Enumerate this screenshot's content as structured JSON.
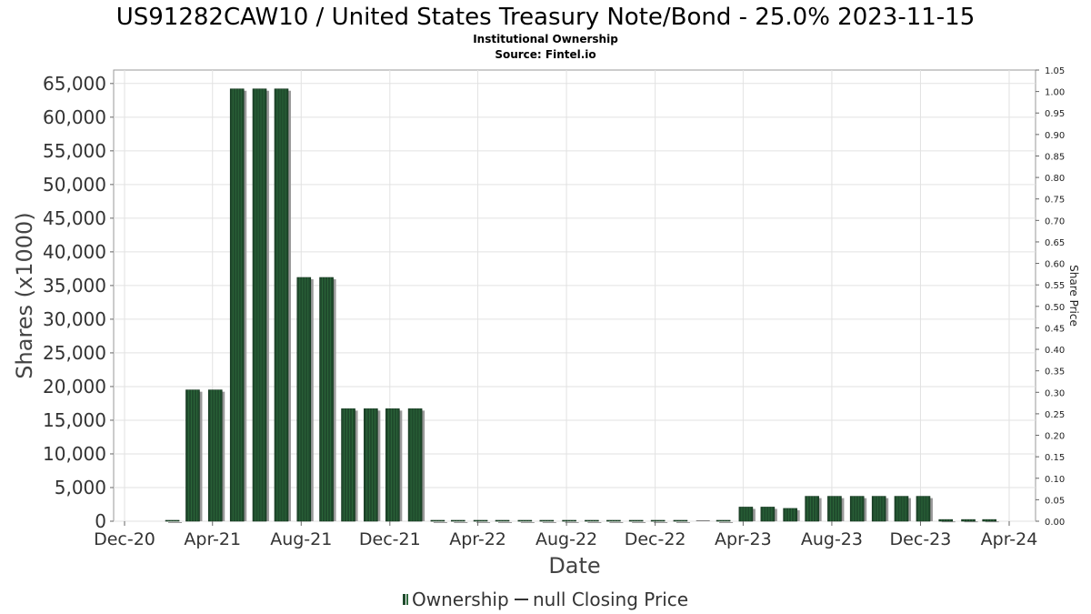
{
  "chart_data": {
    "type": "bar",
    "title": "US91282CAW10 / United States Treasury Note/Bond - 25.0% 2023-11-15",
    "subtitle": "Institutional Ownership",
    "source": "Source: Fintel.io",
    "xlabel": "Date",
    "ylabel": "Shares (x1000)",
    "y2label": "Share Price",
    "ylim": [
      0,
      67000
    ],
    "y2lim": [
      0,
      1.05
    ],
    "yticks": [
      "0",
      "5,000",
      "10,000",
      "15,000",
      "20,000",
      "25,000",
      "30,000",
      "35,000",
      "40,000",
      "45,000",
      "50,000",
      "55,000",
      "60,000",
      "65,000"
    ],
    "y2ticks": [
      "0.00",
      "0.05",
      "0.10",
      "0.15",
      "0.20",
      "0.25",
      "0.30",
      "0.35",
      "0.40",
      "0.45",
      "0.50",
      "0.55",
      "0.60",
      "0.65",
      "0.70",
      "0.75",
      "0.80",
      "0.85",
      "0.90",
      "0.95",
      "1.00",
      "1.05"
    ],
    "xticks": [
      "Dec-20",
      "Apr-21",
      "Aug-21",
      "Dec-21",
      "Apr-22",
      "Aug-22",
      "Dec-22",
      "Apr-23",
      "Aug-23",
      "Dec-23",
      "Apr-24"
    ],
    "grid": true,
    "legend_position": "bottom",
    "series": [
      {
        "name": "Ownership",
        "color": "#1f4a2c",
        "x": [
          "2021-02-01",
          "2021-03-01",
          "2021-04-01",
          "2021-05-01",
          "2021-06-01",
          "2021-07-01",
          "2021-08-01",
          "2021-09-01",
          "2021-10-01",
          "2021-11-01",
          "2021-12-01",
          "2022-01-01",
          "2022-02-01",
          "2022-03-01",
          "2022-04-01",
          "2022-05-01",
          "2022-06-01",
          "2022-07-01",
          "2022-08-01",
          "2022-09-01",
          "2022-10-01",
          "2022-11-01",
          "2022-12-01",
          "2023-01-01",
          "2023-02-01",
          "2023-03-01",
          "2023-04-01",
          "2023-05-01",
          "2023-06-01",
          "2023-07-01",
          "2023-08-01",
          "2023-09-01",
          "2023-10-01",
          "2023-11-01",
          "2023-12-01",
          "2024-01-01",
          "2024-02-01",
          "2024-03-01"
        ],
        "values": [
          50,
          19500,
          19500,
          64200,
          64200,
          64200,
          36200,
          36200,
          16700,
          16700,
          16700,
          16700,
          40,
          40,
          40,
          40,
          40,
          40,
          40,
          40,
          40,
          40,
          40,
          40,
          0,
          100,
          2100,
          2100,
          1900,
          3700,
          3700,
          3700,
          3700,
          3700,
          3700,
          250,
          250,
          250
        ]
      },
      {
        "name": "null Closing Price",
        "color": "#333333",
        "values": []
      }
    ]
  }
}
